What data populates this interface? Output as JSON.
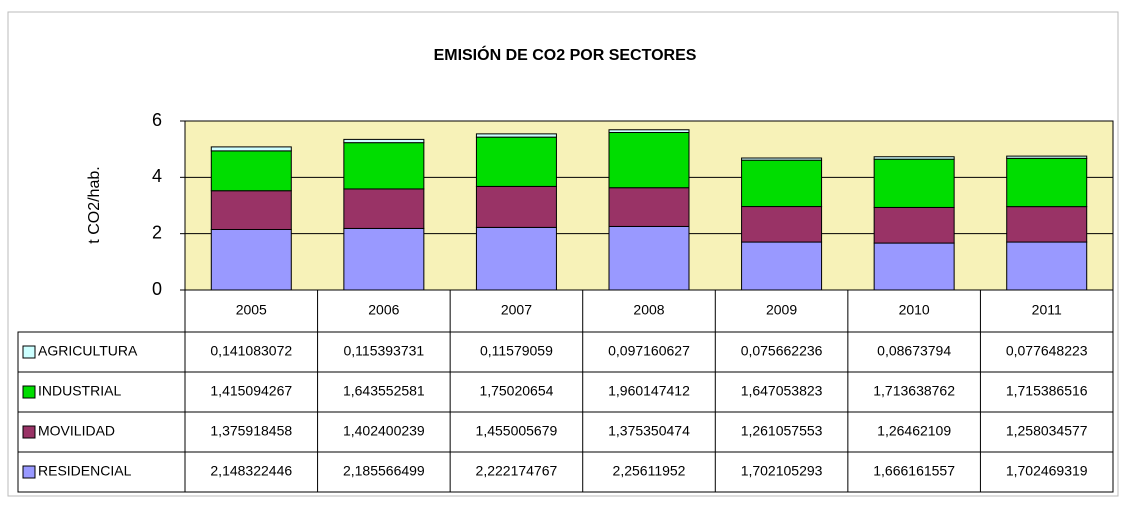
{
  "chart_data": {
    "type": "stacked_bar",
    "title": "EMISIÓN DE CO2 POR SECTORES",
    "y_label": "t CO2/hab.",
    "categories": [
      "2005",
      "2006",
      "2007",
      "2008",
      "2009",
      "2010",
      "2011"
    ],
    "ylim": [
      0,
      6
    ],
    "yticks": [
      0,
      2,
      4,
      6
    ],
    "grid": true,
    "series": [
      {
        "name": "RESIDENCIAL",
        "color": "#9999ff",
        "values": [
          2.148322446,
          2.185566499,
          2.222174767,
          2.25611952,
          1.702105293,
          1.666161557,
          1.702469319
        ],
        "value_labels": [
          "2,148322446",
          "2,185566499",
          "2,222174767",
          "2,25611952",
          "1,702105293",
          "1,666161557",
          "1,702469319"
        ]
      },
      {
        "name": "MOVILIDAD",
        "color": "#993366",
        "values": [
          1.375918458,
          1.402400239,
          1.455005679,
          1.375350474,
          1.261057553,
          1.26462109,
          1.258034577
        ],
        "value_labels": [
          "1,375918458",
          "1,402400239",
          "1,455005679",
          "1,375350474",
          "1,261057553",
          "1,26462109",
          "1,258034577"
        ]
      },
      {
        "name": "INDUSTRIAL",
        "color": "#00dd00",
        "values": [
          1.415094267,
          1.643552581,
          1.75020654,
          1.960147412,
          1.647053823,
          1.713638762,
          1.715386516
        ],
        "value_labels": [
          "1,415094267",
          "1,643552581",
          "1,75020654",
          "1,960147412",
          "1,647053823",
          "1,713638762",
          "1,715386516"
        ]
      },
      {
        "name": "AGRICULTURA",
        "color": "#ccffff",
        "values": [
          0.141083072,
          0.115393731,
          0.11579059,
          0.097160627,
          0.075662236,
          0.08673794,
          0.077648223
        ],
        "value_labels": [
          "0,141083072",
          "0,115393731",
          "0,11579059",
          "0,097160627",
          "0,075662236",
          "0,08673794",
          "0,077648223"
        ]
      }
    ]
  }
}
